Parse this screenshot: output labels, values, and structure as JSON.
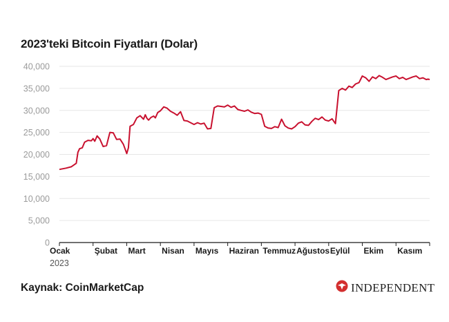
{
  "title": "2023'teki Bitcoin Fiyatları (Dolar)",
  "source": "Kaynak: CoinMarketCap",
  "logo": {
    "text": "INDEPENDENT",
    "icon": "eagle-icon",
    "color": "#d32f2f"
  },
  "colors": {
    "line": "#c8102e",
    "grid": "#e6e6e6",
    "axis": "#1a1a1a"
  },
  "chart_data": {
    "type": "line",
    "title": "2023'teki Bitcoin Fiyatları (Dolar)",
    "xlabel": "",
    "ylabel": "",
    "ylim": [
      0,
      40000
    ],
    "yticks": [
      0,
      5000,
      10000,
      15000,
      20000,
      25000,
      30000,
      35000,
      40000
    ],
    "ytick_labels": [
      "0",
      "5,000",
      "10,000",
      "15,000",
      "20,000",
      "25,000",
      "30,000",
      "35,000",
      "40,000"
    ],
    "month_labels": [
      "Ocak",
      "Şubat",
      "Mart",
      "Nisan",
      "Mayıs",
      "Haziran",
      "Temmuz",
      "Ağustos",
      "Eylül",
      "Ekim",
      "Kasım"
    ],
    "year_label": "2023",
    "grid": true,
    "series": [
      {
        "x": [
          0,
          0.2,
          0.35,
          0.5,
          0.55,
          0.6,
          0.68,
          0.75,
          0.85,
          0.95,
          1.0,
          1.05,
          1.12,
          1.2,
          1.3,
          1.4,
          1.5,
          1.6,
          1.7,
          1.8,
          1.9,
          2.0,
          2.05,
          2.1,
          2.2,
          2.3,
          2.4,
          2.5,
          2.55,
          2.6,
          2.65,
          2.72,
          2.8,
          2.85,
          2.92,
          3.0,
          3.1,
          3.2,
          3.3,
          3.4,
          3.5,
          3.6,
          3.7,
          3.8,
          3.9,
          4.0,
          4.1,
          4.2,
          4.3,
          4.4,
          4.5,
          4.6,
          4.7,
          4.8,
          4.9,
          5.0,
          5.1,
          5.2,
          5.3,
          5.4,
          5.5,
          5.6,
          5.7,
          5.8,
          5.9,
          6.0,
          6.1,
          6.2,
          6.3,
          6.4,
          6.5,
          6.6,
          6.7,
          6.8,
          6.9,
          7.0,
          7.1,
          7.2,
          7.3,
          7.4,
          7.5,
          7.6,
          7.7,
          7.8,
          7.9,
          8.0,
          8.1,
          8.2,
          8.3,
          8.4,
          8.5,
          8.6,
          8.7,
          8.8,
          8.9,
          9.0,
          9.1,
          9.2,
          9.3,
          9.4,
          9.5,
          9.6,
          9.7,
          9.8,
          9.9,
          10.0,
          10.1,
          10.2,
          10.3,
          10.4,
          10.5,
          10.6,
          10.7,
          10.8,
          10.9,
          10.95,
          11.0
        ],
        "y": [
          16600,
          16900,
          17200,
          18000,
          20500,
          21300,
          21500,
          22800,
          23200,
          23100,
          23600,
          23000,
          24200,
          23500,
          21800,
          22000,
          25000,
          24900,
          23400,
          23500,
          22300,
          20200,
          21500,
          26400,
          26800,
          28300,
          28800,
          28000,
          29000,
          28200,
          27800,
          28400,
          28700,
          28300,
          29500,
          29900,
          30800,
          30500,
          29800,
          29400,
          28900,
          29700,
          27700,
          27600,
          27200,
          26800,
          27200,
          26900,
          27100,
          25800,
          25900,
          30600,
          31000,
          30900,
          30800,
          31200,
          30700,
          31000,
          30200,
          30000,
          29800,
          30100,
          29600,
          29300,
          29400,
          29100,
          26400,
          26000,
          25900,
          26300,
          26100,
          28000,
          26500,
          26000,
          25800,
          26300,
          27100,
          27400,
          26700,
          26600,
          27500,
          28200,
          27900,
          28500,
          27800,
          27600,
          28100,
          27000,
          34500,
          35000,
          34600,
          35500,
          35200,
          36000,
          36300,
          37800,
          37400,
          36600,
          37600,
          37200,
          37900,
          37500,
          37000,
          37300,
          37600,
          37800,
          37200,
          37500,
          37000,
          37300,
          37600,
          37800,
          37200,
          37400,
          37000,
          37100,
          37000
        ]
      }
    ]
  }
}
